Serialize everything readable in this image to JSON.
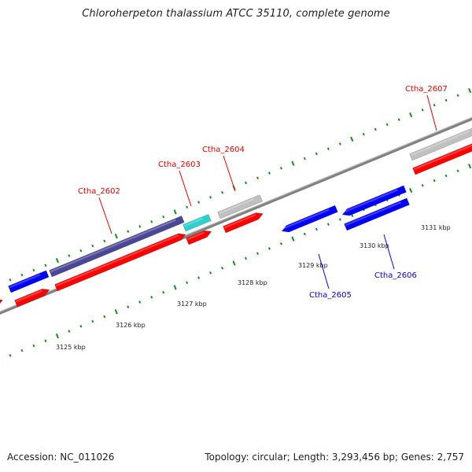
{
  "title": "Chloroherpeton thalassium ATCC 35110, complete genome",
  "footer": {
    "accession": "Accession: NC_011026",
    "summary": "Topology: circular; Length: 3,293,456 bp; Genes: 2,757"
  },
  "colors": {
    "background": "#ffffff",
    "backbone": "#808080",
    "tick": "#1a8c1a",
    "forward_cds": "#ff0000",
    "reverse_cds": "#0000ff",
    "gray_feature": "#c0c0c0",
    "purple_feature": "#4a4896",
    "cyan_feature": "#2bd0d0",
    "label_red": "#e00000",
    "label_blue": "#0000e0"
  },
  "scale_labels": [
    "3125 kbp",
    "3126 kbp",
    "3127 kbp",
    "3128 kbp",
    "3129 kbp",
    "3130 kbp",
    "3131 kbp"
  ],
  "gene_labels": [
    {
      "name": "Ctha_2602",
      "strand": "forward"
    },
    {
      "name": "Ctha_2603",
      "strand": "forward"
    },
    {
      "name": "Ctha_2604",
      "strand": "forward"
    },
    {
      "name": "Ctha_2605",
      "strand": "reverse"
    },
    {
      "name": "Ctha_2606",
      "strand": "reverse"
    },
    {
      "name": "Ctha_2607",
      "strand": "forward"
    }
  ]
}
